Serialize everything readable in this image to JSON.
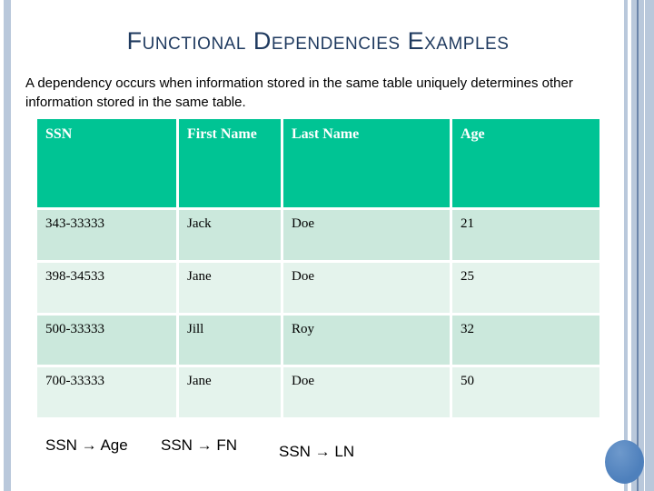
{
  "slide": {
    "title": "Functional Dependencies Examples",
    "body_text": "A dependency occurs when information stored in the same table uniquely determines other information stored in the same table.",
    "dependencies": [
      "SSN → Age",
      "SSN → FN",
      "SSN → LN"
    ]
  },
  "table": {
    "headers": [
      "SSN",
      "First Name",
      "Last Name",
      "Age"
    ],
    "rows": [
      [
        "343-33333",
        "Jack",
        "Doe",
        "21"
      ],
      [
        "398-34533",
        "Jane",
        "Doe",
        "25"
      ],
      [
        "500-33333",
        "Jill",
        "Roy",
        "32"
      ],
      [
        "700-33333",
        "Jane",
        "Doe",
        "50"
      ]
    ]
  },
  "colors": {
    "title": "#1F3A5F",
    "header_bg": "#00C494",
    "row_odd_bg": "#CBE8DC",
    "row_even_bg": "#E4F3EC",
    "stripe": "#B9C8DB",
    "stripe_dark": "#6A84A9",
    "circle": "#4E80BC"
  }
}
